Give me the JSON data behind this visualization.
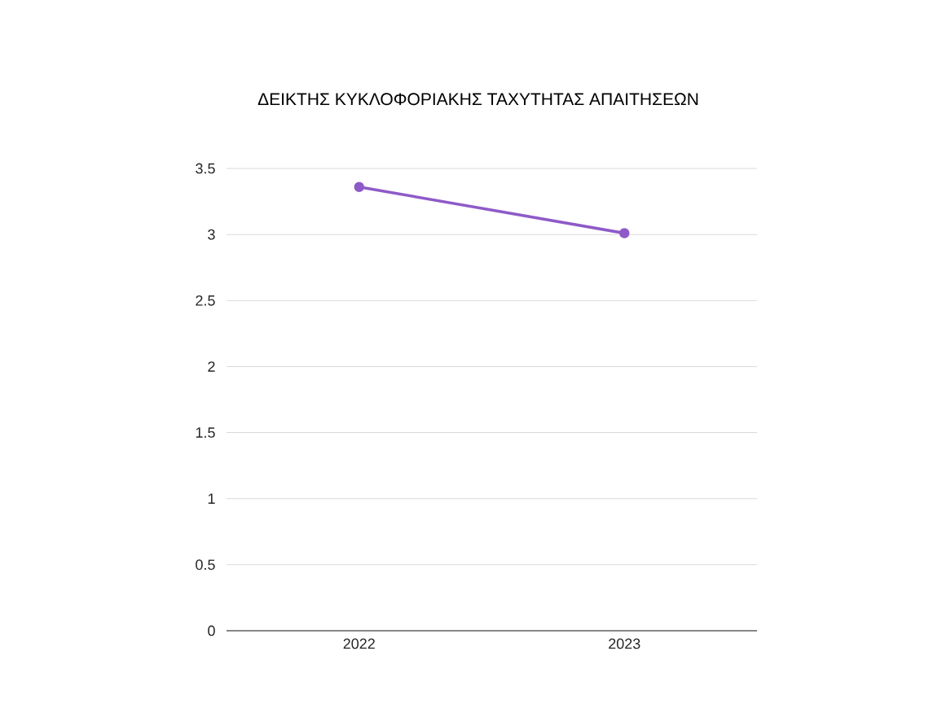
{
  "chart_data": {
    "type": "line",
    "title": "ΔΕΙΚΤΗΣ ΚΥΚΛΟΦΟΡΙΑΚΗΣ ΤΑΧΥΤΗΤΑΣ ΑΠΑΙΤΗΣΕΩΝ",
    "categories": [
      "2022",
      "2023"
    ],
    "series": [
      {
        "color": "#8e5ac8",
        "values": [
          3.36,
          3.01
        ]
      }
    ],
    "ylim": [
      0,
      3.5
    ],
    "yticks": [
      0,
      0.5,
      1,
      1.5,
      2,
      2.5,
      3,
      3.5
    ],
    "grid": "y",
    "marker": "circle",
    "line_style": "solid"
  }
}
